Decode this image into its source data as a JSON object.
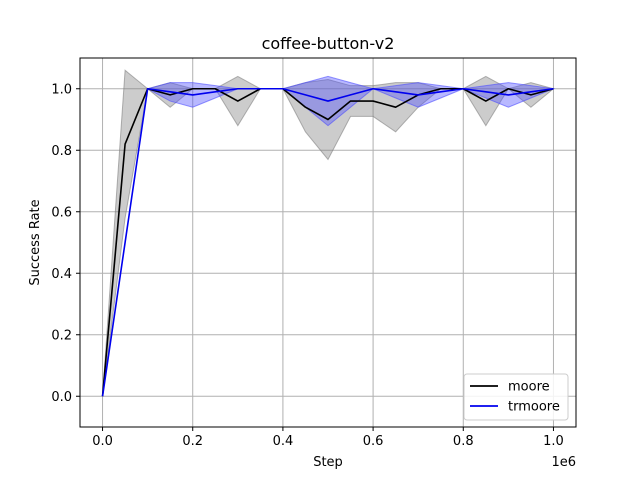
{
  "chart_data": {
    "type": "line",
    "title": "coffee-button-v2",
    "xlabel": "Step",
    "ylabel": "Success Rate",
    "x_offset_label": "1e6",
    "xlim": [
      -50000,
      1050000
    ],
    "ylim": [
      -0.1,
      1.1
    ],
    "x_ticks": [
      0,
      200000,
      400000,
      600000,
      800000,
      1000000
    ],
    "x_tick_labels": [
      "0.0",
      "0.2",
      "0.4",
      "0.6",
      "0.8",
      "1.0"
    ],
    "y_ticks": [
      0.0,
      0.2,
      0.4,
      0.6,
      0.8,
      1.0
    ],
    "y_tick_labels": [
      "0.0",
      "0.2",
      "0.4",
      "0.6",
      "0.8",
      "1.0"
    ],
    "grid": true,
    "legend_position": "lower-right",
    "x": [
      0,
      50000,
      100000,
      150000,
      200000,
      250000,
      300000,
      350000,
      400000,
      450000,
      500000,
      550000,
      600000,
      650000,
      700000,
      750000,
      800000,
      850000,
      900000,
      950000,
      1000000
    ],
    "series": [
      {
        "name": "moore",
        "color": "#000000",
        "band_color": "#808080",
        "values": [
          0.0,
          0.82,
          1.0,
          0.98,
          1.0,
          1.0,
          0.96,
          1.0,
          1.0,
          0.94,
          0.9,
          0.96,
          0.96,
          0.94,
          0.98,
          1.0,
          1.0,
          0.96,
          1.0,
          0.98,
          1.0
        ],
        "upper": [
          0.0,
          1.06,
          1.0,
          1.02,
          1.0,
          1.0,
          1.04,
          1.0,
          1.0,
          1.02,
          1.03,
          1.01,
          1.01,
          1.02,
          1.02,
          1.0,
          1.0,
          1.04,
          1.0,
          1.02,
          1.0
        ],
        "lower": [
          0.0,
          0.58,
          1.0,
          0.94,
          1.0,
          1.0,
          0.88,
          1.0,
          1.0,
          0.86,
          0.77,
          0.91,
          0.91,
          0.86,
          0.94,
          1.0,
          1.0,
          0.88,
          1.0,
          0.94,
          1.0
        ]
      },
      {
        "name": "trmoore",
        "color": "#0000ee",
        "band_color": "#4d4dff",
        "values": [
          0.0,
          0.5,
          1.0,
          0.99,
          0.98,
          0.99,
          1.0,
          1.0,
          1.0,
          0.98,
          0.96,
          0.98,
          1.0,
          0.99,
          0.98,
          0.99,
          1.0,
          0.99,
          0.98,
          0.99,
          1.0
        ],
        "upper": [
          0.0,
          0.5,
          1.0,
          1.02,
          1.02,
          1.01,
          1.0,
          1.0,
          1.0,
          1.02,
          1.04,
          1.02,
          1.0,
          1.01,
          1.02,
          1.01,
          1.0,
          1.01,
          1.02,
          1.01,
          1.0
        ],
        "lower": [
          0.0,
          0.5,
          1.0,
          0.96,
          0.94,
          0.97,
          1.0,
          1.0,
          1.0,
          0.94,
          0.88,
          0.94,
          1.0,
          0.97,
          0.94,
          0.97,
          1.0,
          0.97,
          0.94,
          0.97,
          1.0
        ]
      }
    ]
  }
}
